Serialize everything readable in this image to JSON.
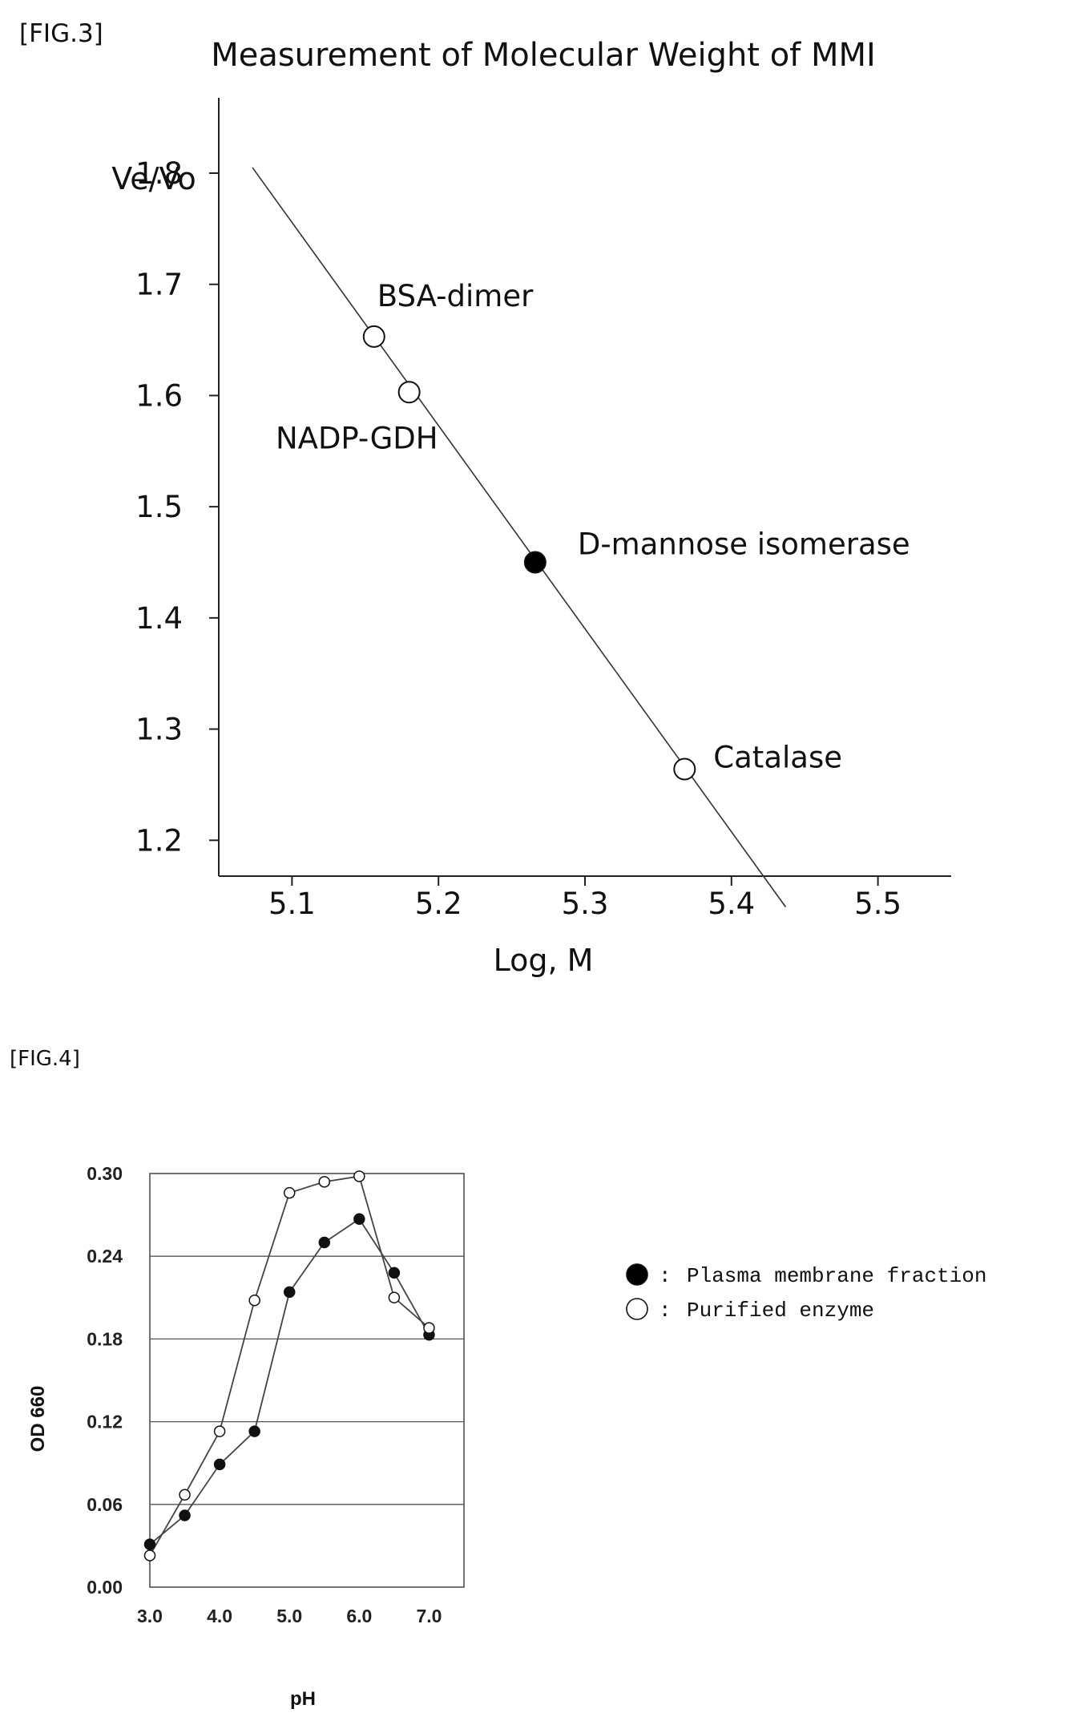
{
  "figures": {
    "fig3_label": "[FIG.3]",
    "fig4_label": "[FIG.4]"
  },
  "chart_data": [
    {
      "type": "scatter",
      "title": "Measurement of Molecular Weight of MMI",
      "xlabel": "Log,  M",
      "ylabel": "Ve/Vo",
      "xlim": [
        5.05,
        5.55
      ],
      "ylim": [
        1.1,
        1.8
      ],
      "x_ticks": [
        "5.1",
        "5.2",
        "5.3",
        "5.4",
        "5.5"
      ],
      "y_ticks": [
        "1.8",
        "1.7",
        "1.6",
        "1.5",
        "1.4",
        "1.3",
        "1.2"
      ],
      "grid": false,
      "fit_line": {
        "x": [
          5.073,
          5.437
        ],
        "y": [
          1.805,
          1.14
        ]
      },
      "points": [
        {
          "label": "BSA-dimer",
          "x": 5.156,
          "y": 1.653,
          "filled": false
        },
        {
          "label": "NADP-GDH",
          "x": 5.18,
          "y": 1.603,
          "filled": false
        },
        {
          "label": "D-mannose isomerase",
          "x": 5.266,
          "y": 1.45,
          "filled": true
        },
        {
          "label": "Catalase",
          "x": 5.368,
          "y": 1.264,
          "filled": false
        }
      ]
    },
    {
      "type": "line",
      "title": "",
      "xlabel": "pH",
      "ylabel": "OD 660",
      "xlim": [
        3.0,
        7.5
      ],
      "ylim": [
        0.0,
        0.3
      ],
      "x_ticks": [
        "3.0",
        "4.0",
        "5.0",
        "6.0",
        "7.0"
      ],
      "y_ticks": [
        "0.30",
        "0.24",
        "0.18",
        "0.12",
        "0.06",
        "0.00"
      ],
      "grid": true,
      "legend_position": "right",
      "legend_separator": ":",
      "series": [
        {
          "name": "Plasma membrane fraction",
          "marker": "filled",
          "x": [
            3.0,
            3.5,
            4.0,
            4.5,
            5.0,
            5.5,
            6.0,
            6.5,
            7.0
          ],
          "y": [
            0.031,
            0.052,
            0.089,
            0.113,
            0.214,
            0.25,
            0.267,
            0.228,
            0.183
          ]
        },
        {
          "name": "Purified enzyme",
          "marker": "open",
          "x": [
            3.0,
            3.5,
            4.0,
            4.5,
            5.0,
            5.5,
            6.0,
            6.5,
            7.0
          ],
          "y": [
            0.023,
            0.067,
            0.113,
            0.208,
            0.286,
            0.294,
            0.298,
            0.21,
            0.188
          ]
        }
      ]
    }
  ]
}
